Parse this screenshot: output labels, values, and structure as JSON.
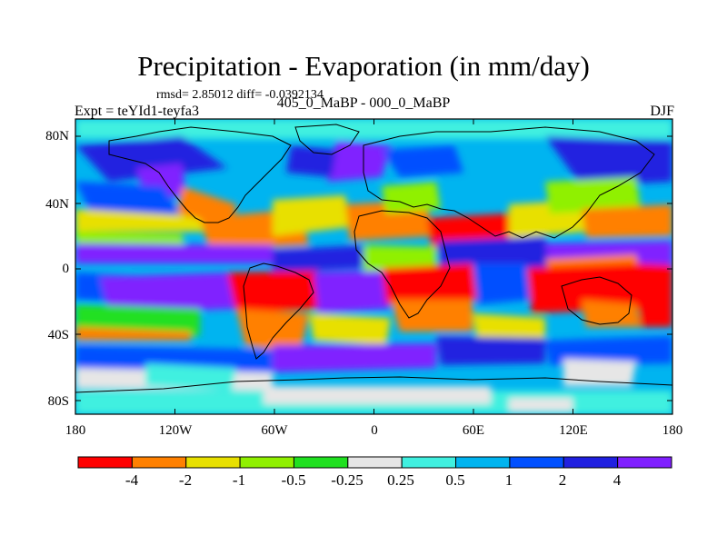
{
  "header": {
    "title": "Precipitation - Evaporation (in mm/day)",
    "stats": "rmsd= 2.85012 diff= -0.0392134",
    "subtitle": "405_0_MaBP - 000_0_MaBP",
    "experiment": "Expt = teYId1-teyfa3",
    "season": "DJF"
  },
  "map": {
    "lat_tick_labels": [
      "80N",
      "40N",
      "0",
      "40S",
      "80S"
    ],
    "lon_tick_labels": [
      "180",
      "120W",
      "60W",
      "0",
      "60E",
      "120E",
      "180"
    ],
    "background_color": "#00b4f0",
    "coastline_color": "#000000"
  },
  "colorbar": {
    "labels": [
      "-4",
      "-2",
      "-1",
      "-0.5",
      "-0.25",
      "0.25",
      "0.5",
      "1",
      "2",
      "4"
    ],
    "colors": [
      "#ff0000",
      "#ff8000",
      "#e8e000",
      "#90f000",
      "#20e020",
      "#e6e6e6",
      "#40f0e0",
      "#00b4f0",
      "#0050ff",
      "#2020e0",
      "#8020ff"
    ]
  }
}
